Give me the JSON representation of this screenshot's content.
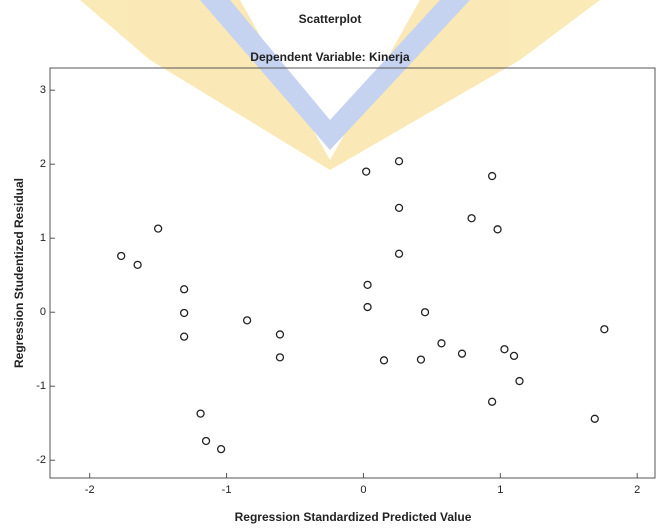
{
  "chart_data": {
    "type": "scatter",
    "title": "Scatterplot",
    "subtitle": "Dependent Variable: Kinerja",
    "x_label": "Regression Standardized Predicted Value",
    "y_label": "Regression Studentized Residual",
    "x": [
      -1.77,
      -1.65,
      -1.5,
      -1.31,
      -1.31,
      -1.31,
      -1.19,
      -1.15,
      -1.04,
      -0.85,
      -0.61,
      -0.61,
      0.02,
      0.03,
      0.03,
      0.15,
      0.26,
      0.26,
      0.26,
      0.42,
      0.45,
      0.57,
      0.72,
      0.79,
      0.94,
      0.94,
      0.98,
      1.03,
      1.1,
      1.14,
      1.69,
      1.76
    ],
    "values": [
      0.76,
      0.64,
      1.13,
      0.31,
      -0.01,
      -0.33,
      -1.37,
      -1.74,
      -1.85,
      -0.11,
      -0.3,
      -0.61,
      1.9,
      0.37,
      0.07,
      -0.65,
      2.04,
      1.41,
      0.79,
      -0.64,
      0.0,
      -0.42,
      -0.56,
      1.27,
      1.84,
      -1.21,
      1.12,
      -0.5,
      -0.59,
      -0.93,
      -1.44,
      -0.23
    ],
    "color": "#222222",
    "xlim": [
      -2.29,
      2.13
    ],
    "xticks": [
      -2,
      -1,
      0,
      1,
      2
    ],
    "ylim": [
      -2.24,
      3.3
    ],
    "yticks": [
      -2,
      -1,
      0,
      1,
      2,
      3
    ]
  }
}
